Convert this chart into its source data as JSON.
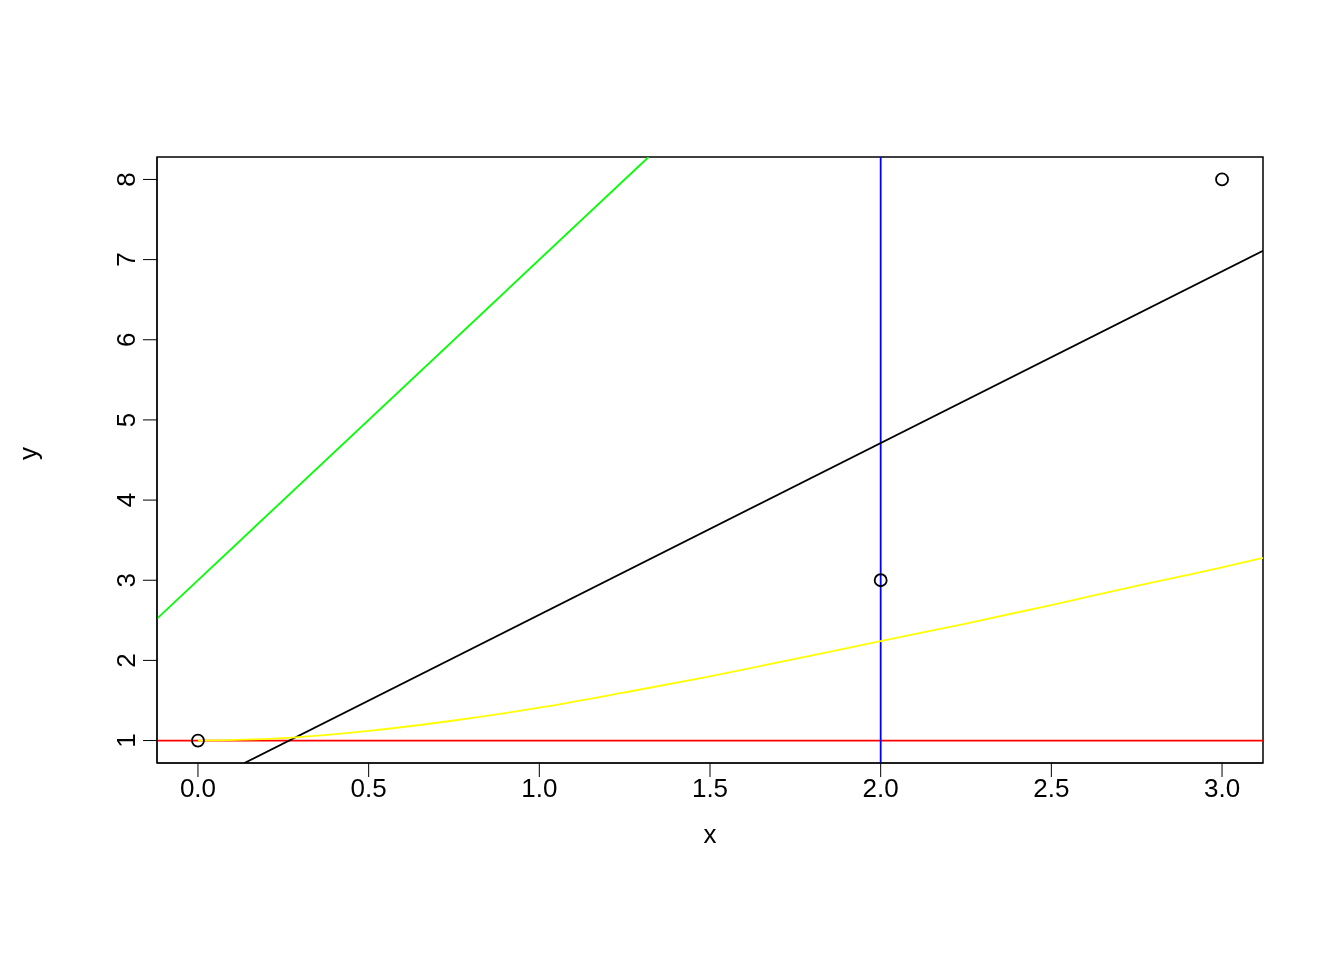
{
  "chart_data": {
    "type": "scatter",
    "xlabel": "x",
    "ylabel": "y",
    "xlim": [
      -0.12,
      3.12
    ],
    "ylim": [
      0.72,
      8.28
    ],
    "xticks": [
      {
        "value": 0,
        "label": "0.0"
      },
      {
        "value": 0.5,
        "label": "0.5"
      },
      {
        "value": 1,
        "label": "1.0"
      },
      {
        "value": 1.5,
        "label": "1.5"
      },
      {
        "value": 2,
        "label": "2.0"
      },
      {
        "value": 2.5,
        "label": "2.5"
      },
      {
        "value": 3,
        "label": "3.0"
      }
    ],
    "yticks": [
      1,
      2,
      3,
      4,
      5,
      6,
      7,
      8
    ],
    "grid": false,
    "legend": false,
    "series": [
      {
        "color": "#000000",
        "marker": "circle",
        "x": [
          0,
          2,
          3
        ],
        "values": [
          1,
          3,
          8
        ]
      },
      {
        "type": "line",
        "color": "#000000",
        "x": [
          0.136,
          3.12
        ],
        "values": [
          0.72,
          7.11
        ]
      },
      {
        "type": "line",
        "color": "#00ff00",
        "x": [
          -0.12,
          1.32
        ],
        "values": [
          2.52,
          8.28
        ]
      },
      {
        "type": "line",
        "color": "#ffff00",
        "x": [
          0,
          0.25,
          0.5,
          0.75,
          1,
          1.25,
          1.5,
          1.75,
          2,
          2.25,
          2.5,
          2.75,
          3,
          3.12
        ],
        "values": [
          1,
          1.03,
          1.12,
          1.25,
          1.41,
          1.6,
          1.8,
          2.02,
          2.24,
          2.46,
          2.69,
          2.93,
          3.16,
          3.28
        ]
      }
    ],
    "ref_lines": [
      {
        "axis": "y",
        "value": 1,
        "color": "#ff0000"
      },
      {
        "axis": "x",
        "value": 2,
        "color": "#0000ff"
      }
    ]
  }
}
